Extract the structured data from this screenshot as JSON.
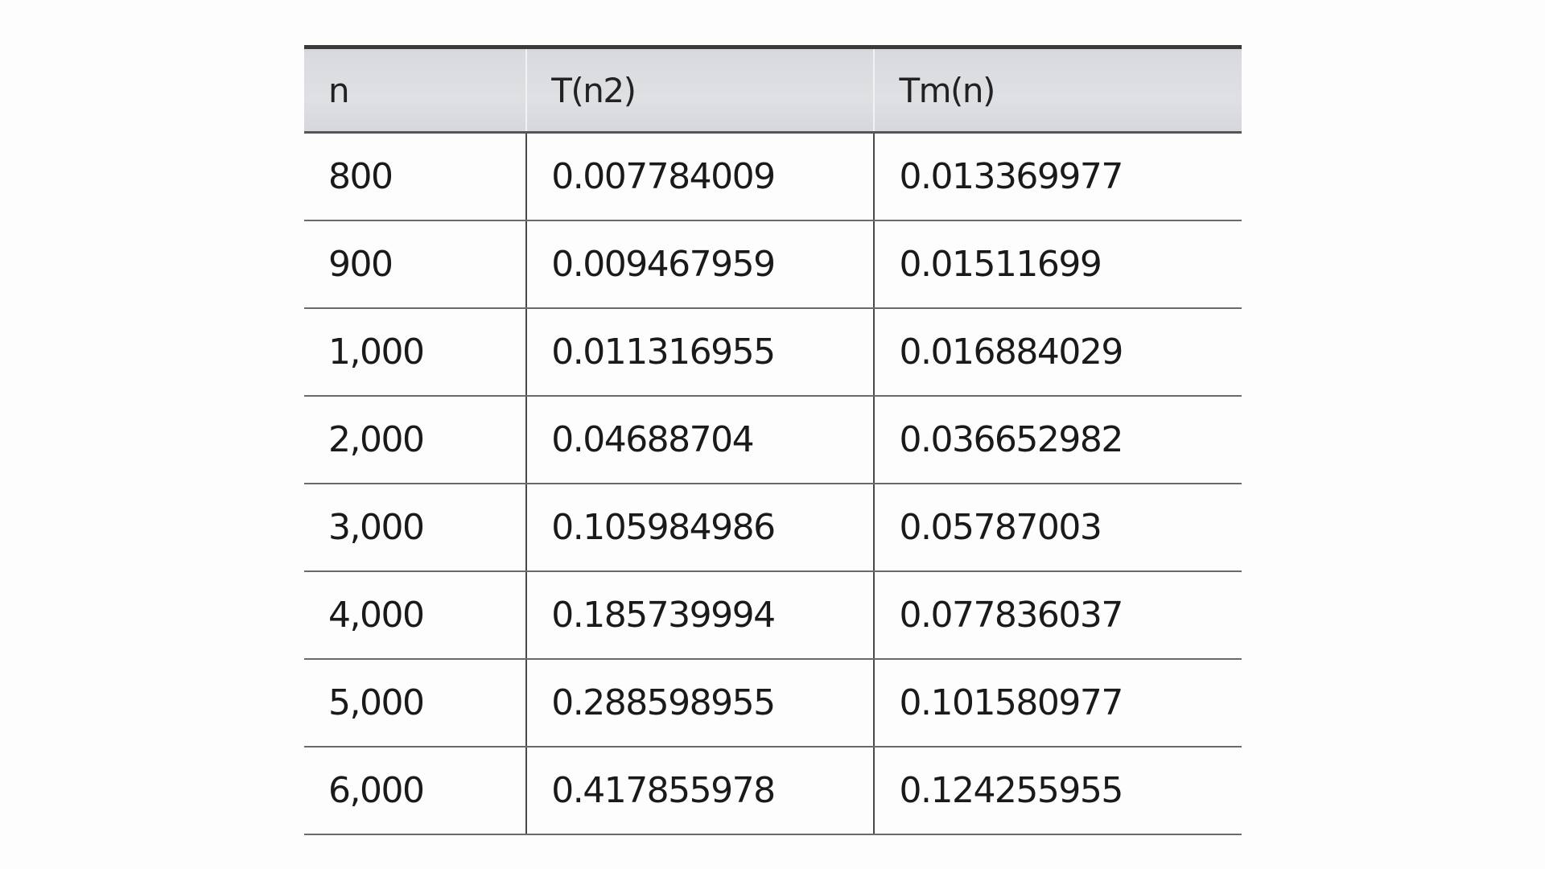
{
  "table": {
    "headers": [
      "n",
      "T(n2)",
      "Tm(n)"
    ],
    "rows": [
      [
        "800",
        "0.007784009",
        "0.013369977"
      ],
      [
        "900",
        "0.009467959",
        "0.01511699"
      ],
      [
        "1,000",
        "0.011316955",
        "0.016884029"
      ],
      [
        "2,000",
        "0.04688704",
        "0.036652982"
      ],
      [
        "3,000",
        "0.105984986",
        "0.05787003"
      ],
      [
        "4,000",
        "0.185739994",
        "0.077836037"
      ],
      [
        "5,000",
        "0.288598955",
        "0.101580977"
      ],
      [
        "6,000",
        "0.417855978",
        "0.124255955"
      ]
    ]
  }
}
